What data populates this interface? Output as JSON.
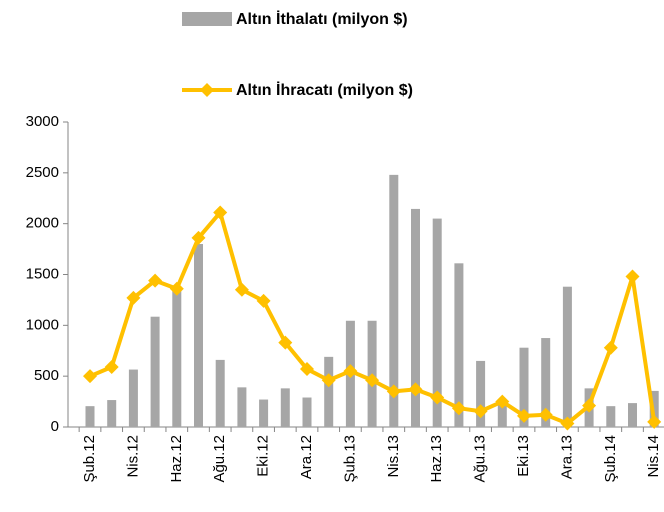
{
  "chart_data": {
    "type": "bar+line",
    "categories": [
      "Şub.12",
      null,
      "Nis.12",
      null,
      "Haz.12",
      null,
      "Ağu.12",
      null,
      "Eki.12",
      null,
      "Ara.12",
      null,
      "Şub.13",
      null,
      "Nis.13",
      null,
      "Haz.13",
      null,
      "Ağu.13",
      null,
      "Eki.13",
      null,
      "Ara.13",
      null,
      "Şub.14",
      null,
      "Nis.14"
    ],
    "series": [
      {
        "name": "Altın İthalatı (milyon $)",
        "type": "bar",
        "color": "#a6a6a6",
        "values": [
          205,
          265,
          565,
          1085,
          1350,
          1800,
          660,
          390,
          270,
          380,
          290,
          690,
          1045,
          1045,
          2480,
          2145,
          2050,
          1610,
          650,
          260,
          780,
          875,
          1380,
          380,
          205,
          235,
          355
        ]
      },
      {
        "name": "Altın İhracatı (milyon $)",
        "type": "line",
        "color": "#ffc000",
        "values": [
          500,
          590,
          1270,
          1440,
          1360,
          1860,
          2110,
          1350,
          1240,
          830,
          570,
          460,
          550,
          460,
          350,
          370,
          290,
          185,
          155,
          250,
          110,
          120,
          35,
          210,
          780,
          1480,
          50
        ]
      }
    ],
    "ylim": [
      0,
      3000
    ],
    "yticks": [
      0,
      500,
      1000,
      1500,
      2000,
      2500,
      3000
    ],
    "legend": "top"
  }
}
